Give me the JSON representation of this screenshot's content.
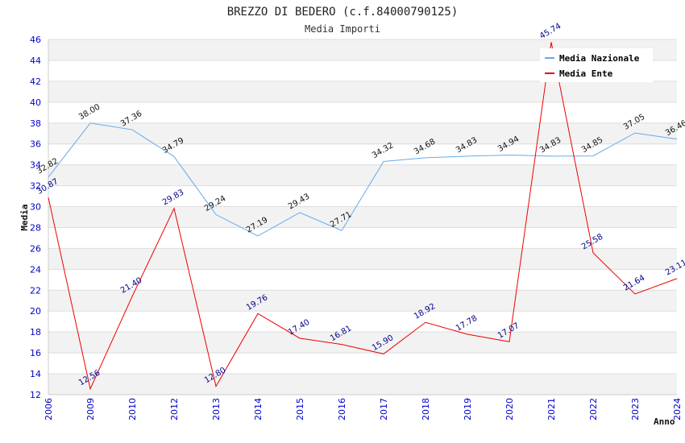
{
  "chart_data": {
    "type": "line",
    "title": "BREZZO DI BEDERO (c.f.84000790125)",
    "subtitle": "Media Importi",
    "xlabel": "Anno",
    "ylabel": "Media",
    "ylim": [
      12,
      46
    ],
    "y_ticks": [
      12,
      14,
      16,
      18,
      20,
      22,
      24,
      26,
      28,
      30,
      32,
      34,
      36,
      38,
      40,
      42,
      44,
      46
    ],
    "categories": [
      "2006",
      "2009",
      "2010",
      "2012",
      "2013",
      "2014",
      "2015",
      "2016",
      "2017",
      "2018",
      "2019",
      "2020",
      "2021",
      "2022",
      "2023",
      "2024"
    ],
    "series": [
      {
        "name": "Media Nazionale",
        "color": "#66aaee",
        "values": [
          32.82,
          38.0,
          37.36,
          34.79,
          29.24,
          27.19,
          29.43,
          27.71,
          34.32,
          34.68,
          34.83,
          34.94,
          34.83,
          34.85,
          37.05,
          36.46
        ],
        "labels": [
          "32.82",
          "38.00",
          "37.36",
          "34.79",
          "29.24",
          "27.19",
          "29.43",
          "27.71",
          "34.32",
          "34.68",
          "34.83",
          "34.94",
          "34.83",
          "34.85",
          "37.05",
          "36.46"
        ]
      },
      {
        "name": "Media Ente",
        "color": "#ee0000",
        "values": [
          30.87,
          12.56,
          21.4,
          29.83,
          12.8,
          19.76,
          17.4,
          16.81,
          15.9,
          18.92,
          17.78,
          17.07,
          45.74,
          25.58,
          21.64,
          23.11
        ],
        "labels": [
          "30.87",
          "12.56",
          "21.40",
          "29.83",
          "12.80",
          "19.76",
          "17.40",
          "16.81",
          "15.90",
          "18.92",
          "17.78",
          "17.07",
          "45.74",
          "25.58",
          "21.64",
          "23.11"
        ]
      }
    ],
    "grid": true,
    "legend_position": "top-right"
  }
}
